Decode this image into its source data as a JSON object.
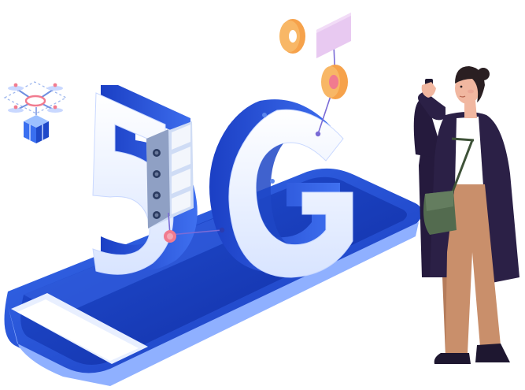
{
  "illustration": {
    "text_mark": "5G",
    "icons": [
      "delivery-drone-icon",
      "server-rack-icon",
      "location-pin-icon",
      "info-card-icon",
      "smartphone-icon"
    ],
    "colors": {
      "primary_blue": "#1f49c9",
      "light_blue": "#5b86ee",
      "pale_blue": "#e6efff",
      "orange": "#f6a24b",
      "pink": "#f17b8f",
      "lilac": "#e8c9f1",
      "coat": "#2b2046",
      "trousers": "#c98f6b",
      "bag": "#536b4f"
    }
  }
}
